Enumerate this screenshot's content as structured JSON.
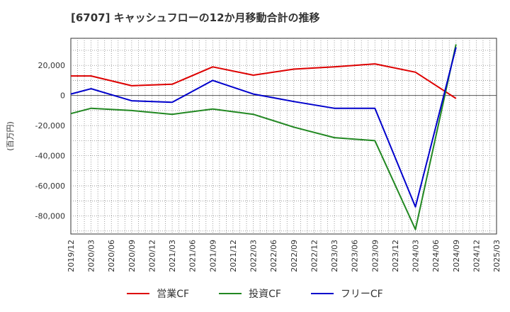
{
  "chart_data": {
    "type": "line",
    "title": "[6707]  キャッシュフローの12か月移動合計の推移",
    "ylabel": "(百万円)",
    "xlabel": "",
    "ylim": [
      -92000,
      38000
    ],
    "yticks": [
      20000,
      0,
      -20000,
      -40000,
      -60000,
      -80000
    ],
    "ytick_labels": [
      "20,000",
      "0",
      "-20,000",
      "-40,000",
      "-60,000",
      "-80,000"
    ],
    "categories": [
      "2019/12",
      "2020/03",
      "2020/06",
      "2020/09",
      "2020/12",
      "2021/03",
      "2021/06",
      "2021/09",
      "2021/12",
      "2022/03",
      "2022/06",
      "2022/09",
      "2022/12",
      "2023/03",
      "2023/06",
      "2023/09",
      "2023/12",
      "2024/03",
      "2024/06",
      "2024/09",
      "2024/12",
      "2025/03"
    ],
    "grid": true,
    "legend_position": "bottom",
    "series": [
      {
        "name": "営業CF",
        "color": "#dd0000",
        "values": [
          13000,
          13000,
          null,
          6500,
          null,
          7500,
          null,
          19000,
          null,
          13500,
          null,
          17500,
          null,
          19000,
          null,
          21000,
          null,
          15500,
          null,
          -2000,
          null,
          null
        ]
      },
      {
        "name": "投資CF",
        "color": "#228822",
        "values": [
          -12000,
          -8500,
          null,
          -10000,
          null,
          -12500,
          null,
          -9000,
          null,
          -12500,
          null,
          -21000,
          null,
          -28000,
          null,
          -30000,
          null,
          -89000,
          null,
          34000,
          null,
          null
        ]
      },
      {
        "name": "フリーCF",
        "color": "#0000cc",
        "values": [
          1000,
          4500,
          null,
          -3500,
          null,
          -4500,
          null,
          10000,
          null,
          1000,
          null,
          -4000,
          null,
          -8500,
          null,
          -8500,
          null,
          -74000,
          null,
          32000,
          null,
          null
        ]
      }
    ]
  }
}
